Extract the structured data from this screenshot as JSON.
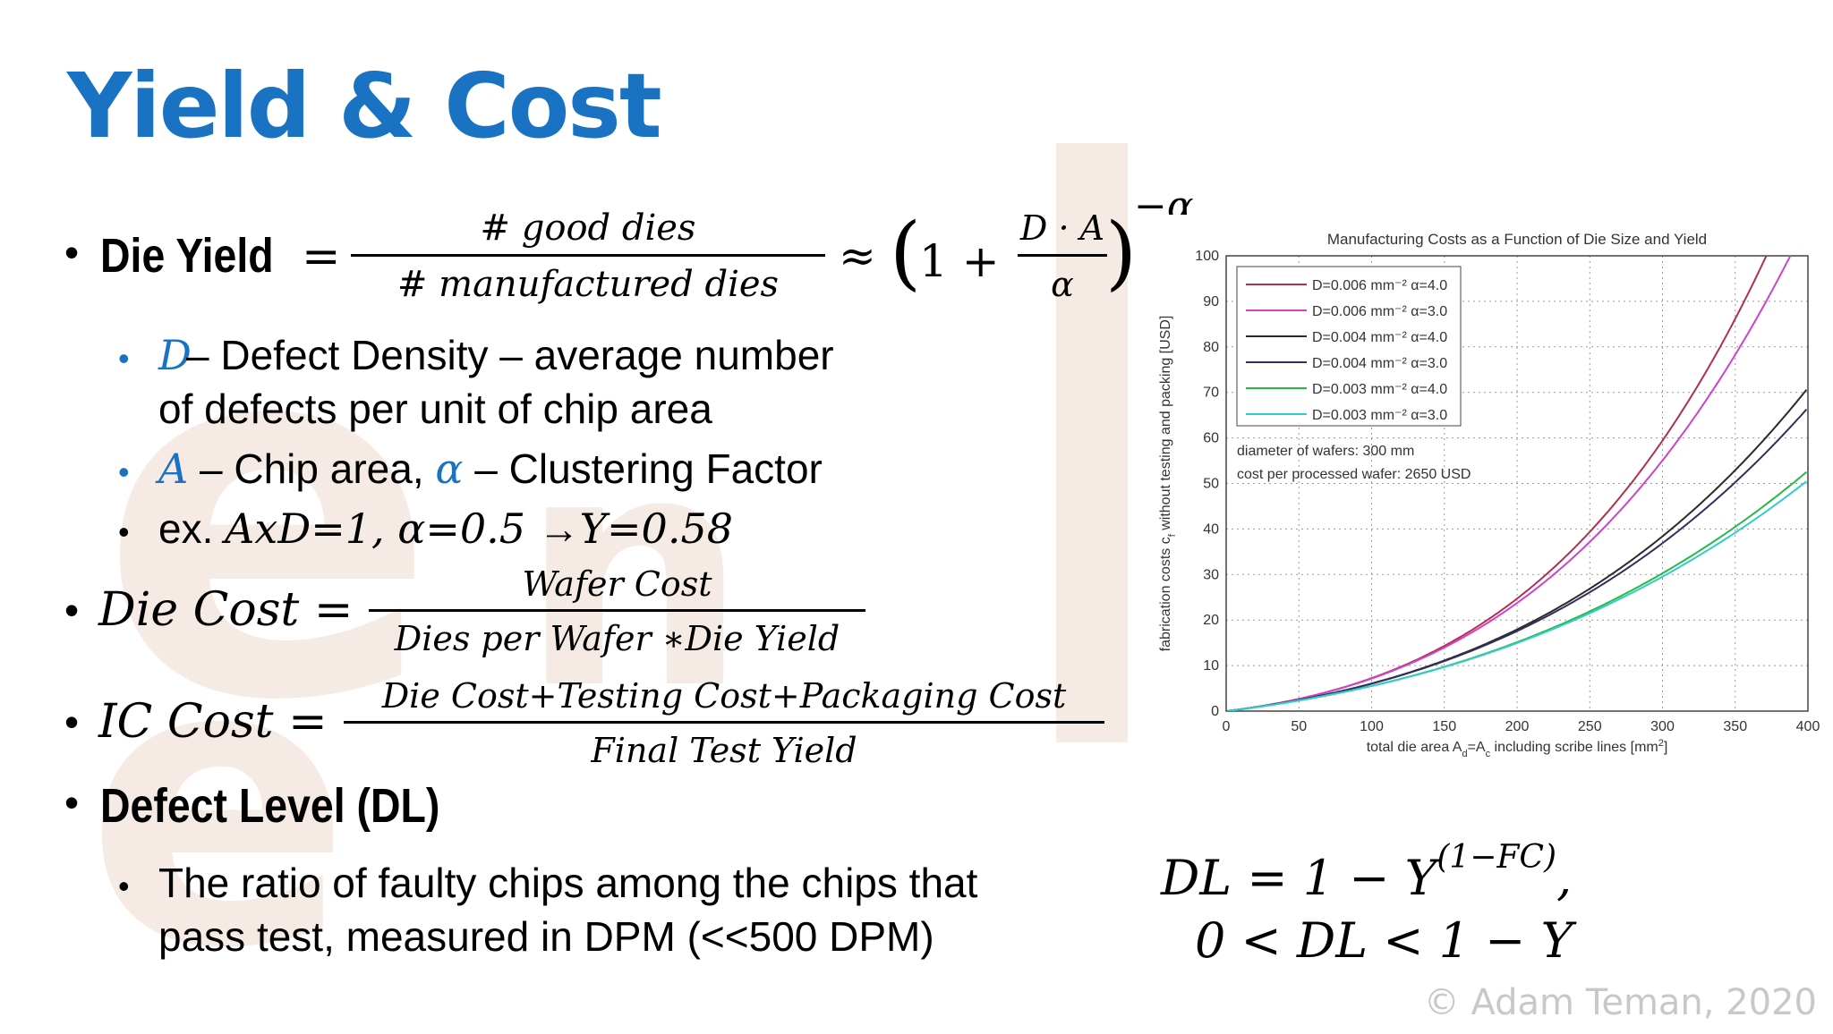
{
  "title": "Yield  & Cost",
  "die_yield": {
    "label": "Die Yield",
    "eq": "=",
    "num": "# good dies",
    "den": "# manufactured dies",
    "approx": "≈",
    "paren_open": "(",
    "one_plus": "1 +",
    "inner_num": "D · A",
    "inner_den": "α",
    "paren_close": ")",
    "exponent": "−α"
  },
  "sub_bullets": {
    "d_symbol": "D",
    "d_text_line1": " – Defect Density – average number",
    "d_text_line2": "of defects per unit of chip area",
    "a_symbol": "A",
    "a_text_mid": " – Chip area, ",
    "alpha_symbol": "α",
    "a_text_end": " – Clustering Factor",
    "ex_prefix": "ex. ",
    "ex_formula": "AxD=1, α=0.5 ",
    "ex_arrow": "→",
    "ex_result": "Y=0.58"
  },
  "die_cost": {
    "label": "Die Cost =",
    "num": "Wafer Cost",
    "den": "Dies per Wafer ∗Die Yield"
  },
  "ic_cost": {
    "label": "IC Cost =",
    "num": "Die Cost+Testing Cost+Packaging Cost",
    "den": "Final Test Yield"
  },
  "defect_level": {
    "label": "Defect Level (DL)",
    "text_line1": "The ratio of faulty chips among the chips that",
    "text_line2": "pass test, measured in DPM (<<500 DPM)",
    "formula1": "DL = 1 − Y",
    "formula1_exp": "(1−FC)",
    "formula1_tail": ",",
    "formula2": "0 < DL < 1 − Y"
  },
  "copyright": "© Adam Teman, 2020",
  "colors": {
    "title": "#1a73c2",
    "watermark": "#f6ebe4"
  },
  "chart_data": {
    "type": "line",
    "title": "Manufacturing Costs as a Function of Die Size and Yield",
    "xlabel_parts": [
      "total die area  A",
      "d",
      "=A",
      "c",
      "  including scribe lines [mm",
      "2",
      "]"
    ],
    "ylabel_parts": [
      "fabrication costs  c",
      "f",
      " without testing and packing [USD]"
    ],
    "xlim": [
      0,
      400
    ],
    "ylim": [
      0,
      100
    ],
    "xticks": [
      0,
      50,
      100,
      150,
      200,
      250,
      300,
      350,
      400
    ],
    "yticks": [
      0,
      10,
      20,
      30,
      40,
      50,
      60,
      70,
      80,
      90,
      100
    ],
    "grid": true,
    "legend_position": "top-left",
    "annotations": [
      "diameter of wafers: 300 mm",
      "cost per processed wafer: 2650 USD"
    ],
    "series": [
      {
        "name": "D=0.006 mm⁻²  α=4.0",
        "D": 0.006,
        "alpha": 4.0,
        "color": "#b03050"
      },
      {
        "name": "D=0.006 mm⁻²  α=3.0",
        "D": 0.006,
        "alpha": 3.0,
        "color": "#cc44cc"
      },
      {
        "name": "D=0.004 mm⁻²  α=4.0",
        "D": 0.004,
        "alpha": 4.0,
        "color": "#2a2a2a"
      },
      {
        "name": "D=0.004 mm⁻²  α=3.0",
        "D": 0.004,
        "alpha": 3.0,
        "color": "#303060"
      },
      {
        "name": "D=0.003 mm⁻²  α=4.0",
        "D": 0.003,
        "alpha": 4.0,
        "color": "#22bb44"
      },
      {
        "name": "D=0.003 mm⁻²  α=3.0",
        "D": 0.003,
        "alpha": 3.0,
        "color": "#33cccc"
      }
    ],
    "wafer_diameter_mm": 300,
    "wafer_cost_usd": 2650
  }
}
